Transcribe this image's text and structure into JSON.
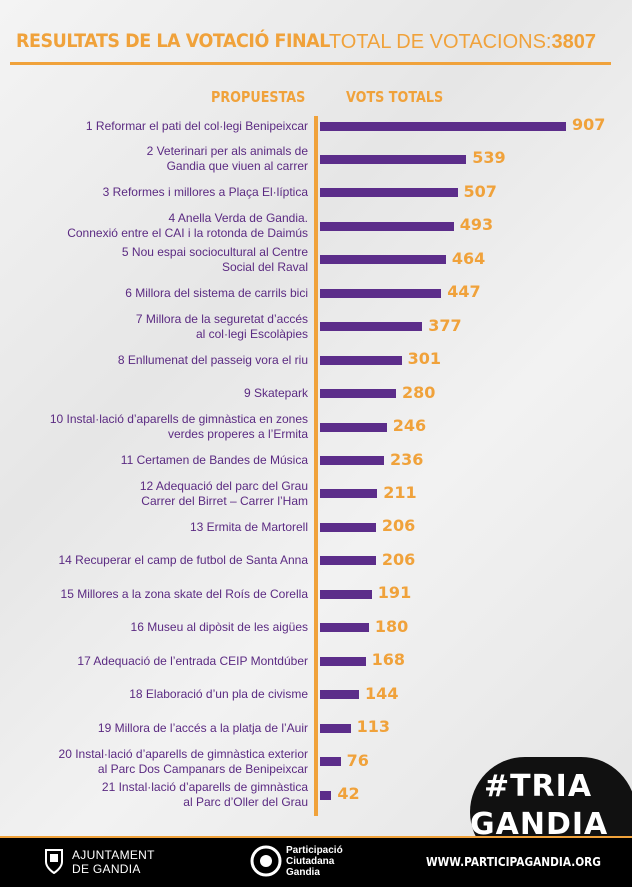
{
  "header": {
    "title": "RESULTATS DE LA VOTACIÓ FINAL",
    "total_label": "TOTAL DE VOTACIONS:",
    "total_value": "3807"
  },
  "columns": {
    "proposals": "PROPUESTAS",
    "votes": "VOTS TOTALS"
  },
  "chart_data": {
    "type": "bar",
    "orientation": "horizontal",
    "title": "RESULTATS DE LA VOTACIÓ FINAL",
    "xlabel": "VOTS TOTALS",
    "ylabel": "PROPUESTAS",
    "xlim": [
      0,
      907
    ],
    "grid": false,
    "categories": [
      [
        "1 Reformar el pati del col·legi Benipeixcar"
      ],
      [
        "2 Veterinari per als animals de",
        "Gandia que viuen al carrer"
      ],
      [
        "3 Reformes i millores a Plaça El·líptica"
      ],
      [
        "4 Anella Verda de Gandia.",
        "Connexió entre el CAI i la rotonda de Daimús"
      ],
      [
        "5 Nou espai sociocultural al Centre",
        "Social del Raval"
      ],
      [
        "6 Millora del sistema de carrils bici"
      ],
      [
        "7 Millora de la seguretat d’accés",
        "al col·legi Escolàpies"
      ],
      [
        "8 Enllumenat del passeig vora el riu"
      ],
      [
        "9 Skatepark"
      ],
      [
        "10 Instal·lació d’aparells de gimnàstica en zones",
        "verdes properes a l’Ermita"
      ],
      [
        "11 Certamen de Bandes de Música"
      ],
      [
        "12 Adequació del parc del Grau",
        "Carrer del Birret – Carrer l’Ham"
      ],
      [
        "13 Ermita de Martorell"
      ],
      [
        "14 Recuperar el camp de futbol de Santa Anna"
      ],
      [
        "15 Millores a la zona skate del Roís de Corella"
      ],
      [
        "16 Museu al dipòsit de les aigües"
      ],
      [
        "17 Adequació de l’entrada CEIP Montdúber"
      ],
      [
        "18 Elaboració d’un pla de civisme"
      ],
      [
        "19 Millora de l’accés a la platja de l’Auir"
      ],
      [
        "20 Instal·lació d’aparells de gimnàstica exterior",
        "al Parc Dos Campanars de Benipeixcar"
      ],
      [
        "21 Instal·lació d’aparells de gimnàstica",
        "al Parc d’Oller del Grau"
      ]
    ],
    "values": [
      907,
      539,
      507,
      493,
      464,
      447,
      377,
      301,
      280,
      246,
      236,
      211,
      206,
      206,
      191,
      180,
      168,
      144,
      113,
      76,
      42
    ],
    "bar_color": "#5c2d8a",
    "value_color": "#f0a23b"
  },
  "badge": {
    "line1": "#TRIA",
    "line2": "GANDIA"
  },
  "footer": {
    "ajuntament_line1": "AJUNTAMENT",
    "ajuntament_line2": "DE GANDIA",
    "participacio_line1": "Participació",
    "participacio_line2": "Ciutadana",
    "participacio_line3": "Gandia",
    "website": "WWW.PARTICIPAGANDIA.ORG"
  },
  "colors": {
    "accent": "#f0a23b",
    "purple": "#5c2d8a",
    "text_purple": "#5b2a82"
  }
}
